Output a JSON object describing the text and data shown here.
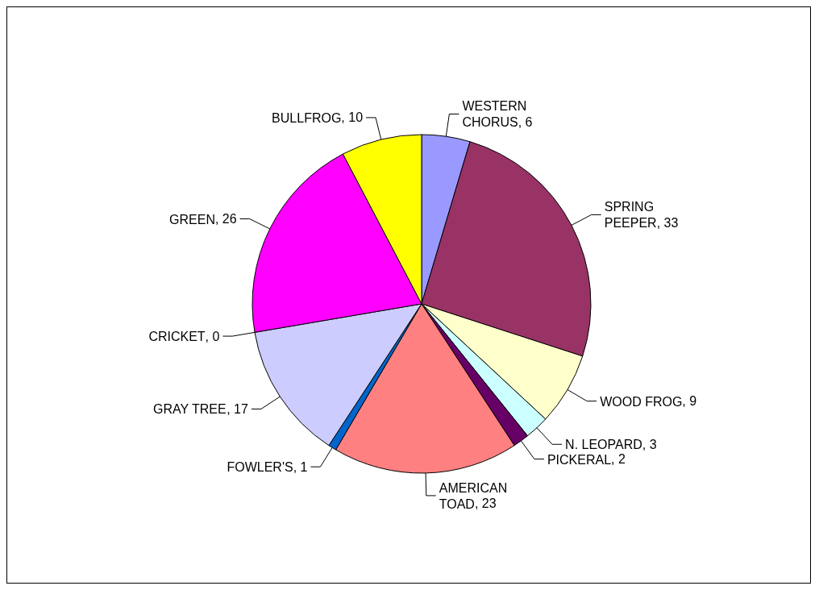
{
  "chart_data": {
    "type": "pie",
    "categories": [
      "WESTERN CHORUS",
      "SPRING PEEPER",
      "WOOD FROG",
      "N. LEOPARD",
      "PICKERAL",
      "AMERICAN TOAD",
      "FOWLER'S",
      "GRAY TREE",
      "CRICKET",
      "GREEN",
      "BULLFROG"
    ],
    "values": [
      6,
      33,
      9,
      3,
      2,
      23,
      1,
      17,
      0,
      26,
      10
    ],
    "value_labels": [
      ", 6",
      ", 33",
      ", 9",
      ", 3",
      ", 2",
      ", 23",
      ", 1",
      ", 17",
      ", 0",
      ", 26",
      ", 10"
    ],
    "colors": [
      "#9999ff",
      "#993366",
      "#ffffcc",
      "#ccffff",
      "#660066",
      "#ff8080",
      "#0066cc",
      "#ccccff",
      "#000080",
      "#ff00ff",
      "#ffff00"
    ]
  }
}
